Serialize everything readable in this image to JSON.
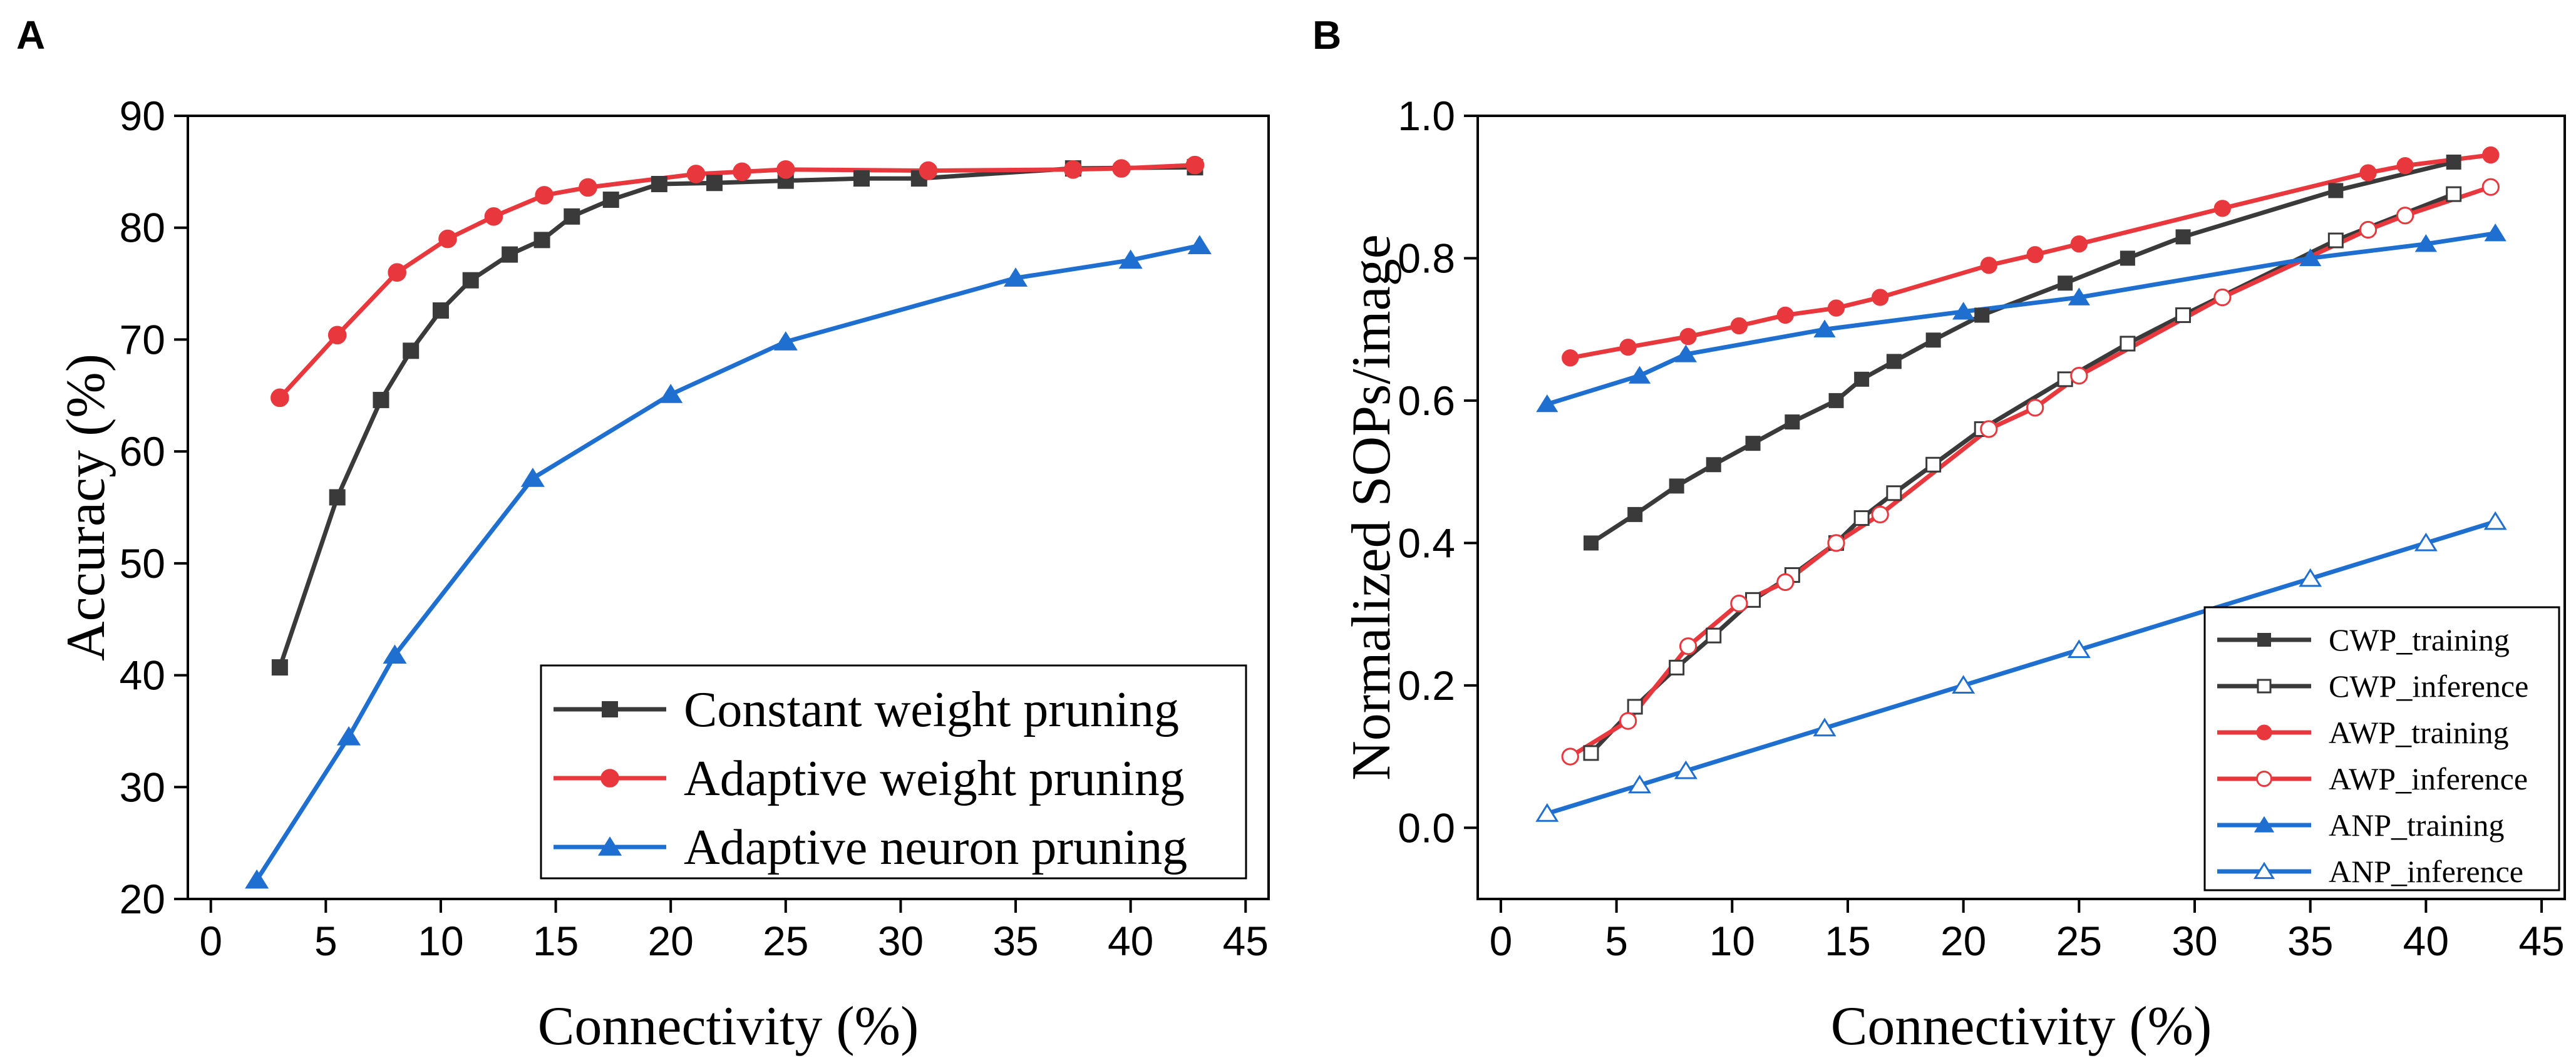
{
  "chart_data": [
    {
      "panel": "A",
      "type": "line",
      "title": "",
      "xlabel": "Connectivity (%)",
      "ylabel": "Accuracy (%)",
      "xlim": [
        -1,
        46
      ],
      "ylim": [
        20,
        90
      ],
      "xticks": [
        0,
        5,
        10,
        15,
        20,
        25,
        30,
        35,
        40,
        45
      ],
      "yticks": [
        20,
        30,
        40,
        50,
        60,
        70,
        80,
        90
      ],
      "grid": false,
      "legend_position": "bottom-right",
      "series": [
        {
          "name": "Constant weight pruning",
          "color": "#3a3a3a",
          "marker": "square",
          "filled": true,
          "x": [
            3,
            5.5,
            7.4,
            8.7,
            10,
            11.3,
            13,
            14.4,
            15.7,
            17.4,
            19.5,
            21.9,
            25,
            28.3,
            30.8,
            37.5,
            42.8
          ],
          "y": [
            40.7,
            55.9,
            64.6,
            69.0,
            72.6,
            75.3,
            77.6,
            78.9,
            81.0,
            82.5,
            83.9,
            84.0,
            84.2,
            84.4,
            84.4,
            85.3,
            85.4
          ]
        },
        {
          "name": "Adaptive weight pruning",
          "color": "#e8383d",
          "marker": "circle",
          "filled": true,
          "x": [
            3,
            5.5,
            8.1,
            10.3,
            12.3,
            14.5,
            16.4,
            21.1,
            23.1,
            25,
            31.2,
            37.5,
            39.6,
            42.8
          ],
          "y": [
            64.8,
            70.4,
            76.0,
            79.0,
            81.0,
            82.9,
            83.6,
            84.8,
            85.0,
            85.2,
            85.1,
            85.2,
            85.3,
            85.6
          ]
        },
        {
          "name": "Adaptive neuron pruning",
          "color": "#1f6fd0",
          "marker": "triangle",
          "filled": true,
          "x": [
            2,
            6,
            8,
            14,
            20,
            25,
            35,
            40,
            43
          ],
          "y": [
            21.7,
            34.5,
            41.8,
            57.6,
            65.1,
            69.8,
            75.5,
            77.1,
            78.4
          ]
        }
      ]
    },
    {
      "panel": "B",
      "type": "line",
      "title": "",
      "xlabel": "Connectivity (%)",
      "ylabel": "Normalized SOPs/image",
      "xlim": [
        -1,
        46
      ],
      "ylim": [
        -0.1,
        1.0
      ],
      "xticks": [
        0,
        5,
        10,
        15,
        20,
        25,
        30,
        35,
        40,
        45
      ],
      "yticks": [
        0.0,
        0.2,
        0.4,
        0.6,
        0.8,
        1.0
      ],
      "ytick_labels": [
        "0.0",
        "0.2",
        "0.4",
        "0.6",
        "0.8",
        "1.0"
      ],
      "grid": false,
      "legend_position": "bottom-right",
      "series": [
        {
          "name": "CWP_training",
          "color": "#3a3a3a",
          "marker": "square",
          "filled": true,
          "x": [
            3.9,
            5.8,
            7.6,
            9.2,
            10.9,
            12.6,
            14.5,
            15.6,
            17.0,
            18.7,
            20.8,
            24.4,
            27.1,
            29.5,
            36.1,
            41.2
          ],
          "y": [
            0.4,
            0.44,
            0.48,
            0.51,
            0.54,
            0.57,
            0.6,
            0.63,
            0.655,
            0.685,
            0.72,
            0.765,
            0.8,
            0.83,
            0.895,
            0.935
          ]
        },
        {
          "name": "CWP_inference",
          "color": "#3a3a3a",
          "marker": "square",
          "filled": false,
          "x": [
            3.9,
            5.8,
            7.6,
            9.2,
            10.9,
            12.6,
            14.5,
            15.6,
            17.0,
            18.7,
            20.8,
            24.4,
            27.1,
            29.5,
            36.1,
            41.2
          ],
          "y": [
            0.105,
            0.17,
            0.225,
            0.27,
            0.32,
            0.355,
            0.4,
            0.435,
            0.47,
            0.51,
            0.56,
            0.63,
            0.68,
            0.72,
            0.825,
            0.89
          ]
        },
        {
          "name": "AWP_training",
          "color": "#e8383d",
          "marker": "circle",
          "filled": true,
          "x": [
            3,
            5.5,
            8.1,
            10.3,
            12.3,
            14.5,
            16.4,
            21.1,
            23.1,
            25,
            31.2,
            37.5,
            39.1,
            42.8
          ],
          "y": [
            0.66,
            0.675,
            0.69,
            0.705,
            0.72,
            0.73,
            0.745,
            0.79,
            0.805,
            0.82,
            0.87,
            0.92,
            0.93,
            0.945
          ]
        },
        {
          "name": "AWP_inference",
          "color": "#e8383d",
          "marker": "circle",
          "filled": false,
          "x": [
            3,
            5.5,
            8.1,
            10.3,
            12.3,
            14.5,
            16.4,
            21.1,
            23.1,
            25,
            31.2,
            37.5,
            39.1,
            42.8
          ],
          "y": [
            0.1,
            0.15,
            0.255,
            0.315,
            0.345,
            0.4,
            0.44,
            0.56,
            0.59,
            0.635,
            0.745,
            0.84,
            0.86,
            0.9
          ]
        },
        {
          "name": "ANP_training",
          "color": "#1f6fd0",
          "marker": "triangle",
          "filled": true,
          "x": [
            2,
            6,
            8,
            14,
            20,
            25,
            35,
            40,
            43
          ],
          "y": [
            0.595,
            0.635,
            0.665,
            0.7,
            0.725,
            0.745,
            0.8,
            0.82,
            0.835
          ]
        },
        {
          "name": "ANP_inference",
          "color": "#1f6fd0",
          "marker": "triangle",
          "filled": false,
          "x": [
            2,
            6,
            8,
            14,
            20,
            25,
            35,
            40,
            43
          ],
          "y": [
            0.02,
            0.06,
            0.08,
            0.14,
            0.2,
            0.25,
            0.35,
            0.4,
            0.43
          ]
        }
      ]
    }
  ]
}
